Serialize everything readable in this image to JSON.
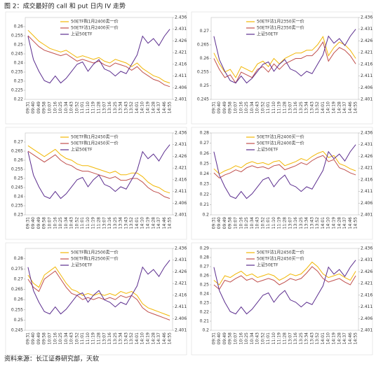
{
  "title": "图 2：成交最好的 call 和 put 日内 IV 走势",
  "source": "资料来源：长江证券研究部，天软",
  "chart_data": [
    {
      "type": "line",
      "categories": [
        "09:31",
        "09:40",
        "09:49",
        "09:58",
        "10:07",
        "10:16",
        "10:25",
        "10:34",
        "10:43",
        "10:52",
        "11:01",
        "11:10",
        "11:19",
        "11:28",
        "13:07",
        "13:16",
        "13:25",
        "13:34",
        "13:43",
        "13:52",
        "14:01",
        "14:10",
        "14:19",
        "14:28",
        "14:37",
        "14:46",
        "14:55"
      ],
      "ylim": [
        0.22,
        0.265
      ],
      "yticks": [
        0.22,
        0.225,
        0.23,
        0.235,
        0.24,
        0.245,
        0.25,
        0.255,
        0.26
      ],
      "y2lim": [
        2.401,
        2.436
      ],
      "y2ticks": [
        2.401,
        2.406,
        2.411,
        2.416,
        2.421,
        2.426,
        2.431,
        2.436
      ],
      "series": [
        {
          "name": "50ETF购1月2400卖一价",
          "color": "#f2b705",
          "values": [
            0.258,
            0.255,
            0.252,
            0.25,
            0.248,
            0.247,
            0.246,
            0.247,
            0.245,
            0.243,
            0.244,
            0.243,
            0.242,
            0.243,
            0.241,
            0.24,
            0.242,
            0.241,
            0.24,
            0.238,
            0.24,
            0.237,
            0.235,
            0.233,
            0.232,
            0.23,
            0.229
          ]
        },
        {
          "name": "50ETF沽1月2400买一价",
          "color": "#c0504d",
          "values": [
            0.255,
            0.252,
            0.249,
            0.247,
            0.246,
            0.245,
            0.244,
            0.245,
            0.243,
            0.241,
            0.242,
            0.241,
            0.24,
            0.241,
            0.239,
            0.238,
            0.24,
            0.239,
            0.238,
            0.236,
            0.238,
            0.235,
            0.233,
            0.231,
            0.23,
            0.228,
            0.227
          ]
        },
        {
          "name": "上证50ETF",
          "color": "#5b2d8e",
          "axis": "y2",
          "values": [
            2.428,
            2.418,
            2.413,
            2.409,
            2.408,
            2.411,
            2.408,
            2.41,
            2.413,
            2.416,
            2.417,
            2.413,
            2.416,
            2.418,
            2.414,
            2.413,
            2.411,
            2.413,
            2.412,
            2.416,
            2.42,
            2.428,
            2.425,
            2.427,
            2.424,
            2.428,
            2.431
          ]
        }
      ]
    },
    {
      "type": "line",
      "categories": [
        "09:31",
        "09:40",
        "09:49",
        "09:58",
        "10:07",
        "10:16",
        "10:25",
        "10:34",
        "10:43",
        "10:52",
        "11:01",
        "11:10",
        "11:19",
        "11:28",
        "13:07",
        "13:16",
        "13:25",
        "13:34",
        "13:43",
        "13:52",
        "14:01",
        "14:10",
        "14:19",
        "14:28",
        "14:37",
        "14:46",
        "14:55"
      ],
      "ylim": [
        0.245,
        0.275
      ],
      "yticks": [
        0.245,
        0.25,
        0.255,
        0.26,
        0.265,
        0.27
      ],
      "y2lim": [
        2.401,
        2.436
      ],
      "y2ticks": [
        2.401,
        2.406,
        2.411,
        2.416,
        2.421,
        2.426,
        2.431,
        2.436
      ],
      "series": [
        {
          "name": "50ETF沽1月2350买一价",
          "color": "#f2b705",
          "values": [
            0.262,
            0.258,
            0.255,
            0.256,
            0.253,
            0.257,
            0.256,
            0.255,
            0.258,
            0.259,
            0.257,
            0.26,
            0.258,
            0.26,
            0.261,
            0.262,
            0.262,
            0.263,
            0.263,
            0.265,
            0.268,
            0.261,
            0.264,
            0.266,
            0.265,
            0.263,
            0.26
          ]
        },
        {
          "name": "50ETF沽1月2350卖一价",
          "color": "#c0504d",
          "values": [
            0.26,
            0.256,
            0.253,
            0.254,
            0.251,
            0.255,
            0.254,
            0.253,
            0.256,
            0.257,
            0.255,
            0.258,
            0.256,
            0.258,
            0.259,
            0.26,
            0.26,
            0.261,
            0.261,
            0.263,
            0.266,
            0.259,
            0.262,
            0.264,
            0.263,
            0.261,
            0.258
          ]
        },
        {
          "name": "上证50ETF",
          "color": "#5b2d8e",
          "axis": "y2",
          "values": [
            2.428,
            2.418,
            2.413,
            2.409,
            2.408,
            2.411,
            2.408,
            2.41,
            2.413,
            2.416,
            2.417,
            2.413,
            2.416,
            2.418,
            2.414,
            2.413,
            2.411,
            2.413,
            2.412,
            2.416,
            2.42,
            2.428,
            2.425,
            2.427,
            2.424,
            2.428,
            2.431
          ]
        }
      ]
    },
    {
      "type": "line",
      "categories": [
        "09:31",
        "09:40",
        "09:49",
        "09:58",
        "10:07",
        "10:16",
        "10:25",
        "10:34",
        "10:43",
        "10:52",
        "11:01",
        "11:10",
        "11:19",
        "11:28",
        "13:07",
        "13:16",
        "13:25",
        "13:34",
        "13:43",
        "13:52",
        "14:01",
        "14:10",
        "14:19",
        "14:28",
        "14:37",
        "14:46",
        "14:55"
      ],
      "ylim": [
        0.23,
        0.275
      ],
      "yticks": [
        0.23,
        0.235,
        0.24,
        0.245,
        0.25,
        0.255,
        0.26,
        0.265,
        0.27
      ],
      "y2lim": [
        2.401,
        2.436
      ],
      "y2ticks": [
        2.401,
        2.406,
        2.411,
        2.416,
        2.421,
        2.426,
        2.431,
        2.436
      ],
      "series": [
        {
          "name": "50ETF购1月2450卖一价",
          "color": "#f2b705",
          "values": [
            0.268,
            0.266,
            0.264,
            0.262,
            0.264,
            0.266,
            0.263,
            0.261,
            0.26,
            0.258,
            0.257,
            0.257,
            0.256,
            0.255,
            0.254,
            0.253,
            0.254,
            0.252,
            0.252,
            0.253,
            0.253,
            0.251,
            0.248,
            0.246,
            0.245,
            0.243,
            0.242
          ]
        },
        {
          "name": "50ETF购1月2450买一价",
          "color": "#c0504d",
          "values": [
            0.265,
            0.263,
            0.261,
            0.259,
            0.261,
            0.263,
            0.26,
            0.258,
            0.257,
            0.255,
            0.254,
            0.254,
            0.253,
            0.252,
            0.251,
            0.25,
            0.251,
            0.249,
            0.249,
            0.25,
            0.25,
            0.248,
            0.245,
            0.243,
            0.242,
            0.24,
            0.239
          ]
        },
        {
          "name": "上证50ETF",
          "color": "#5b2d8e",
          "axis": "y2",
          "values": [
            2.428,
            2.418,
            2.413,
            2.409,
            2.408,
            2.411,
            2.408,
            2.41,
            2.413,
            2.416,
            2.417,
            2.413,
            2.416,
            2.418,
            2.414,
            2.413,
            2.411,
            2.413,
            2.412,
            2.416,
            2.42,
            2.428,
            2.425,
            2.427,
            2.424,
            2.428,
            2.431
          ]
        }
      ]
    },
    {
      "type": "line",
      "categories": [
        "09:31",
        "09:40",
        "09:49",
        "09:58",
        "10:07",
        "10:16",
        "10:25",
        "10:34",
        "10:43",
        "10:52",
        "11:01",
        "11:10",
        "11:19",
        "11:28",
        "13:07",
        "13:16",
        "13:25",
        "13:34",
        "13:43",
        "13:52",
        "14:01",
        "14:10",
        "14:19",
        "14:28",
        "14:37",
        "14:46",
        "14:55"
      ],
      "ylim": [
        0.2,
        0.28
      ],
      "yticks": [
        0.2,
        0.21,
        0.22,
        0.23,
        0.24,
        0.25,
        0.26,
        0.27,
        0.28
      ],
      "y2lim": [
        2.401,
        2.436
      ],
      "y2ticks": [
        2.401,
        2.406,
        2.411,
        2.416,
        2.421,
        2.426,
        2.431,
        2.436
      ],
      "series": [
        {
          "name": "50ETF沽1月2400买一价",
          "color": "#f2b705",
          "values": [
            0.245,
            0.24,
            0.243,
            0.245,
            0.248,
            0.246,
            0.25,
            0.252,
            0.25,
            0.251,
            0.249,
            0.252,
            0.253,
            0.248,
            0.25,
            0.252,
            0.255,
            0.253,
            0.257,
            0.26,
            0.262,
            0.256,
            0.258,
            0.25,
            0.248,
            0.245,
            0.243
          ]
        },
        {
          "name": "50ETF沽1月2400卖一价",
          "color": "#c0504d",
          "values": [
            0.241,
            0.236,
            0.239,
            0.241,
            0.244,
            0.242,
            0.246,
            0.248,
            0.246,
            0.247,
            0.245,
            0.248,
            0.249,
            0.244,
            0.246,
            0.248,
            0.251,
            0.249,
            0.253,
            0.256,
            0.258,
            0.252,
            0.254,
            0.246,
            0.244,
            0.241,
            0.239
          ]
        },
        {
          "name": "上证50ETF",
          "color": "#5b2d8e",
          "axis": "y2",
          "values": [
            2.428,
            2.418,
            2.413,
            2.409,
            2.408,
            2.411,
            2.408,
            2.41,
            2.413,
            2.416,
            2.417,
            2.413,
            2.416,
            2.418,
            2.414,
            2.413,
            2.411,
            2.413,
            2.412,
            2.416,
            2.42,
            2.428,
            2.425,
            2.427,
            2.424,
            2.428,
            2.431
          ]
        }
      ]
    },
    {
      "type": "line",
      "categories": [
        "09:31",
        "09:40",
        "09:49",
        "09:58",
        "10:07",
        "10:16",
        "10:25",
        "10:34",
        "10:43",
        "10:52",
        "11:01",
        "11:10",
        "11:19",
        "11:28",
        "13:07",
        "13:16",
        "13:25",
        "13:34",
        "13:43",
        "13:52",
        "14:01",
        "14:10",
        "14:19",
        "14:28",
        "14:37",
        "14:46",
        "14:55"
      ],
      "ylim": [
        0.245,
        0.285
      ],
      "yticks": [
        0.245,
        0.25,
        0.255,
        0.26,
        0.265,
        0.27,
        0.275,
        0.28
      ],
      "y2lim": [
        2.401,
        2.436
      ],
      "y2ticks": [
        2.401,
        2.406,
        2.411,
        2.416,
        2.421,
        2.426,
        2.431,
        2.436
      ],
      "series": [
        {
          "name": "50ETF购1月2500卖一价",
          "color": "#f2b705",
          "values": [
            0.272,
            0.268,
            0.266,
            0.272,
            0.274,
            0.276,
            0.272,
            0.268,
            0.265,
            0.264,
            0.262,
            0.263,
            0.262,
            0.263,
            0.262,
            0.263,
            0.262,
            0.264,
            0.263,
            0.264,
            0.262,
            0.258,
            0.256,
            0.255,
            0.254,
            0.253,
            0.252
          ]
        },
        {
          "name": "50ETF购1月2500买一价",
          "color": "#c0504d",
          "values": [
            0.27,
            0.266,
            0.264,
            0.27,
            0.272,
            0.274,
            0.27,
            0.266,
            0.263,
            0.262,
            0.26,
            0.261,
            0.26,
            0.261,
            0.26,
            0.261,
            0.26,
            0.262,
            0.261,
            0.262,
            0.26,
            0.256,
            0.254,
            0.253,
            0.252,
            0.251,
            0.25
          ]
        },
        {
          "name": "上证50ETF",
          "color": "#5b2d8e",
          "axis": "y2",
          "values": [
            2.428,
            2.418,
            2.413,
            2.409,
            2.408,
            2.411,
            2.408,
            2.41,
            2.413,
            2.416,
            2.417,
            2.413,
            2.416,
            2.418,
            2.414,
            2.413,
            2.411,
            2.413,
            2.412,
            2.416,
            2.42,
            2.428,
            2.425,
            2.427,
            2.424,
            2.428,
            2.431
          ]
        }
      ]
    },
    {
      "type": "line",
      "categories": [
        "09:31",
        "09:40",
        "09:49",
        "09:58",
        "10:07",
        "10:16",
        "10:25",
        "10:34",
        "10:43",
        "10:52",
        "11:01",
        "11:10",
        "11:19",
        "11:28",
        "13:07",
        "13:16",
        "13:25",
        "13:34",
        "13:43",
        "13:52",
        "14:01",
        "14:10",
        "14:19",
        "14:28",
        "14:37",
        "14:46",
        "14:55"
      ],
      "ylim": [
        0.2,
        0.29
      ],
      "yticks": [
        0.2,
        0.21,
        0.22,
        0.23,
        0.24,
        0.25,
        0.26,
        0.27,
        0.28,
        0.29
      ],
      "y2lim": [
        2.401,
        2.436
      ],
      "y2ticks": [
        2.401,
        2.406,
        2.411,
        2.416,
        2.421,
        2.426,
        2.431,
        2.436
      ],
      "series": [
        {
          "name": "50ETF沽1月2450卖一价",
          "color": "#f2b705",
          "values": [
            0.255,
            0.25,
            0.26,
            0.258,
            0.262,
            0.265,
            0.26,
            0.262,
            0.258,
            0.26,
            0.262,
            0.26,
            0.255,
            0.258,
            0.262,
            0.26,
            0.262,
            0.268,
            0.275,
            0.27,
            0.262,
            0.258,
            0.26,
            0.262,
            0.258,
            0.255,
            0.265
          ]
        },
        {
          "name": "50ETF沽1月2450买一价",
          "color": "#c0504d",
          "values": [
            0.25,
            0.245,
            0.255,
            0.253,
            0.257,
            0.26,
            0.255,
            0.257,
            0.253,
            0.255,
            0.257,
            0.255,
            0.25,
            0.253,
            0.257,
            0.255,
            0.257,
            0.263,
            0.27,
            0.265,
            0.257,
            0.253,
            0.255,
            0.257,
            0.253,
            0.25,
            0.26
          ]
        },
        {
          "name": "上证50ETF",
          "color": "#5b2d8e",
          "axis": "y2",
          "values": [
            2.428,
            2.418,
            2.413,
            2.409,
            2.408,
            2.411,
            2.408,
            2.41,
            2.413,
            2.416,
            2.417,
            2.413,
            2.416,
            2.418,
            2.414,
            2.413,
            2.411,
            2.413,
            2.412,
            2.416,
            2.42,
            2.428,
            2.425,
            2.427,
            2.424,
            2.428,
            2.431
          ]
        }
      ]
    }
  ]
}
